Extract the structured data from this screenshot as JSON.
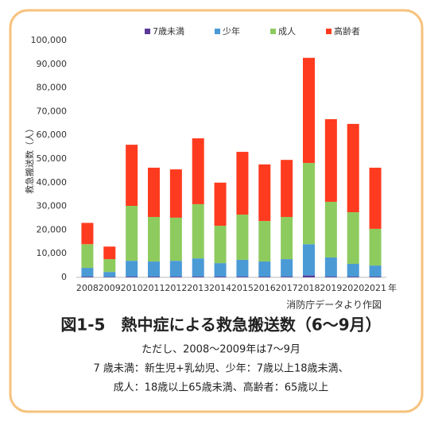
{
  "chart_data": {
    "type": "stacked-bar",
    "ylabel": "救急搬送数（人）",
    "categories": [
      "2008",
      "2009",
      "2010",
      "2011",
      "2012",
      "2013",
      "2014",
      "2015",
      "2016",
      "2017",
      "2018",
      "2019",
      "2020",
      "2021"
    ],
    "x_unit": "年",
    "series": [
      {
        "name": "7歳未満",
        "color": "#5b3a9a",
        "values": [
          300,
          200,
          300,
          300,
          300,
          300,
          300,
          300,
          300,
          300,
          800,
          300,
          300,
          300
        ]
      },
      {
        "name": "少年",
        "color": "#4a9ad6",
        "values": [
          3700,
          2100,
          6700,
          6400,
          6700,
          7700,
          5700,
          7100,
          6400,
          7400,
          13200,
          8100,
          5400,
          4700
        ]
      },
      {
        "name": "成人",
        "color": "#8ecb5f",
        "values": [
          10000,
          5400,
          23200,
          18800,
          18200,
          22900,
          15800,
          19100,
          17100,
          17800,
          34300,
          23500,
          21800,
          15500
        ]
      },
      {
        "name": "高齢者",
        "color": "#ff3b1f",
        "values": [
          9000,
          5300,
          25800,
          20800,
          20400,
          27800,
          18200,
          26500,
          23900,
          24100,
          44400,
          34900,
          37300,
          25800
        ]
      }
    ],
    "ylim": [
      0,
      100000
    ],
    "yticks": [
      0,
      {
        "value": 10000,
        "label": "10,000"
      },
      {
        "value": 20000,
        "label": "20,000"
      },
      {
        "value": 30000,
        "label": "30,000"
      },
      {
        "value": 40000,
        "label": "40,000"
      },
      {
        "value": 50000,
        "label": "50,000"
      },
      {
        "value": 60000,
        "label": "60,000"
      },
      {
        "value": 70000,
        "label": "70,000"
      },
      {
        "value": 80000,
        "label": "80,000"
      },
      {
        "value": 90000,
        "label": "90,000"
      },
      {
        "value": 100000,
        "label": "100,000"
      }
    ],
    "grid": false,
    "source": "消防庁データより作図",
    "figure_title": "図1-5　熱中症による救急搬送数（6～9月）",
    "notes": [
      "ただし、2008～2009年は7～9月",
      "7 歳未満：新生児+乳幼児、少年：7歳以上18歳未満、",
      "成人：18歳以上65歳未満、高齢者：65歳以上"
    ]
  }
}
